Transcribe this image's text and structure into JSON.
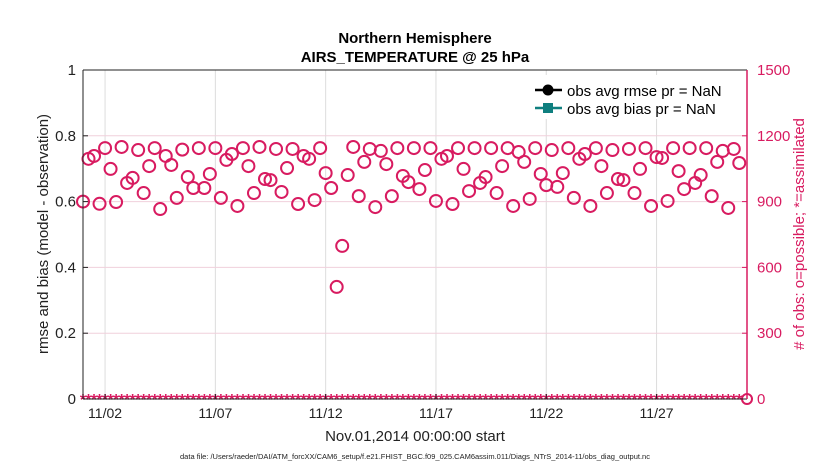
{
  "chart_data": {
    "type": "scatter",
    "title": "Northern Hemisphere",
    "subtitle": "AIRS_TEMPERATURE @ 25 hPa",
    "xlabel": "Nov.01,2014 00:00:00 start",
    "ylabel": "rmse and bias (model - observation)",
    "y2label": "# of obs: o=possible; *=assimilated",
    "footnote": "data file: /Users/raeder/DAI/ATM_forcXX/CAM6_setup/f.e21.FHIST_BGC.f09_025.CAM6assim.011/Diags_NTrS_2014-11/obs_diag_output.nc",
    "xlim_days": [
      0,
      30.1
    ],
    "ylim": [
      0,
      1
    ],
    "y2lim": [
      0,
      1500
    ],
    "x_ticks": [
      {
        "day": 1,
        "label": "11/02"
      },
      {
        "day": 6,
        "label": "11/07"
      },
      {
        "day": 11,
        "label": "11/12"
      },
      {
        "day": 16,
        "label": "11/17"
      },
      {
        "day": 21,
        "label": "11/22"
      },
      {
        "day": 26,
        "label": "11/27"
      }
    ],
    "y_ticks": [
      {
        "v": 0,
        "label": "0"
      },
      {
        "v": 0.2,
        "label": "0.2"
      },
      {
        "v": 0.4,
        "label": "0.4"
      },
      {
        "v": 0.6,
        "label": "0.6"
      },
      {
        "v": 0.8,
        "label": "0.8"
      },
      {
        "v": 1,
        "label": "1"
      }
    ],
    "y2_ticks": [
      {
        "v": 0,
        "label": "0"
      },
      {
        "v": 300,
        "label": "300"
      },
      {
        "v": 600,
        "label": "600"
      },
      {
        "v": 900,
        "label": "900"
      },
      {
        "v": 1200,
        "label": "1200"
      },
      {
        "v": 1500,
        "label": "1500"
      }
    ],
    "legend": {
      "placement": "top-right",
      "entries": [
        {
          "label": "obs avg rmse pr = NaN",
          "color": "#000000",
          "marker": "circle"
        },
        {
          "label": "obs avg bias pr = NaN",
          "color": "#0f7f7f",
          "marker": "square"
        }
      ]
    },
    "series": [
      {
        "name": "obs avg rmse",
        "values": "NaN"
      },
      {
        "name": "obs avg bias",
        "values": "NaN"
      },
      {
        "name": "possible obs",
        "axis": "right",
        "marker": "o",
        "color": "#d81b60",
        "x_step_days": 0.25,
        "values": [
          900,
          1095,
          1108,
          890,
          1144,
          1049,
          898,
          1149,
          985,
          1008,
          1135,
          939,
          1062,
          1144,
          866,
          1108,
          1067,
          917,
          1137,
          1012,
          962,
          1144,
          962,
          1026,
          1144,
          917,
          1090,
          1117,
          880,
          1144,
          1062,
          939,
          1149,
          1003,
          998,
          1140,
          944,
          1053,
          1140,
          889,
          1108,
          1095,
          907,
          1144,
          1030,
          962,
          511,
          698,
          1021,
          1149,
          925,
          1081,
          1140,
          875,
          1131,
          1071,
          925,
          1144,
          1017,
          989,
          1144,
          957,
          1044,
          1144,
          903,
          1095,
          1108,
          889,
          1144,
          1049,
          948,
          1144,
          985,
          1012,
          1144,
          939,
          1062,
          1144,
          880,
          1126,
          1081,
          912,
          1144,
          1026,
          975,
          1135,
          967,
          1030,
          1144,
          917,
          1095,
          1117,
          880,
          1144,
          1062,
          939,
          1135,
          1003,
          998,
          1140,
          939,
          1049,
          1144,
          880,
          1103,
          1099,
          903,
          1144,
          1039,
          957,
          1144,
          985,
          1021,
          1144,
          925,
          1081,
          1131,
          871,
          1140,
          1076
        ]
      },
      {
        "name": "assimilated obs",
        "axis": "right",
        "marker": "*",
        "color": "#d81b60",
        "value_all": 0
      }
    ]
  }
}
